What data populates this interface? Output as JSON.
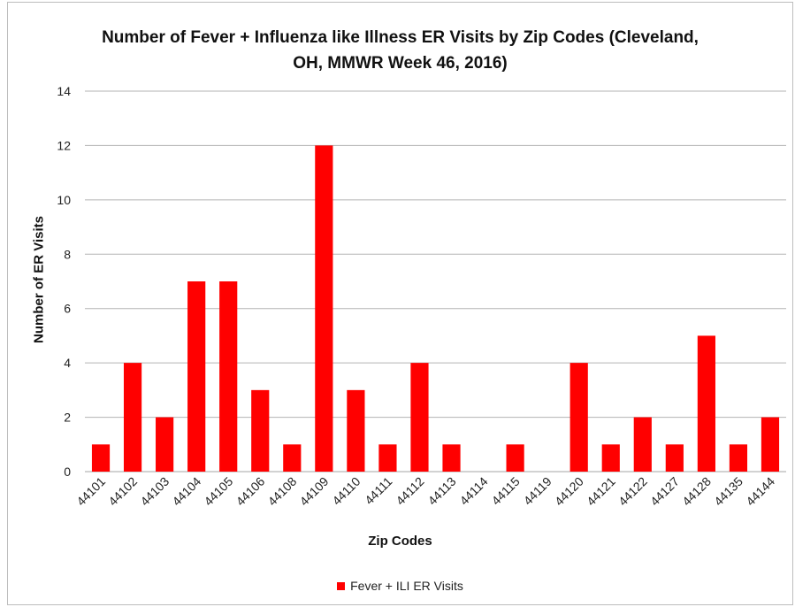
{
  "chart_data": {
    "type": "bar",
    "title_line1": "Number of Fever + Influenza like Illness ER Visits by Zip Codes (Cleveland,",
    "title_line2": "OH, MMWR Week 46, 2016)",
    "xlabel": "Zip Codes",
    "ylabel": "Number of ER Visits",
    "ylim": [
      0,
      14
    ],
    "yticks": [
      0,
      2,
      4,
      6,
      8,
      10,
      12,
      14
    ],
    "grid": true,
    "legend_position": "bottom",
    "color": "#ff0000",
    "categories": [
      "44101",
      "44102",
      "44103",
      "44104",
      "44105",
      "44106",
      "44108",
      "44109",
      "44110",
      "44111",
      "44112",
      "44113",
      "44114",
      "44115",
      "44119",
      "44120",
      "44121",
      "44122",
      "44127",
      "44128",
      "44135",
      "44144"
    ],
    "series": [
      {
        "name": "Fever + ILI ER Visits",
        "values": [
          1,
          4,
          2,
          7,
          7,
          3,
          1,
          12,
          3,
          1,
          4,
          1,
          0,
          1,
          0,
          4,
          1,
          2,
          1,
          5,
          1,
          2
        ]
      }
    ]
  }
}
